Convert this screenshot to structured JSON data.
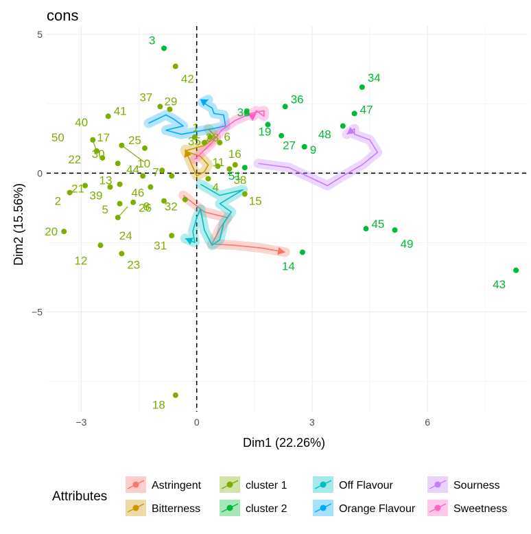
{
  "chart_data": {
    "type": "scatter",
    "title": "cons",
    "xlabel": "Dim1 (22.26%)",
    "ylabel": "Dim2 (15.56%)",
    "xlim": [
      -3.9,
      8.6
    ],
    "ylim": [
      -8.6,
      5.3
    ],
    "xticks": [
      -3,
      0,
      3,
      6
    ],
    "yticks": [
      -5,
      0,
      5
    ],
    "grid": true,
    "reference_lines": {
      "x": 0,
      "y": 0
    },
    "colors": {
      "cluster 1": "#7CAE00",
      "cluster 2": "#00BA38",
      "Astringent": "#F8766D",
      "Bitterness": "#CD9600",
      "Off Flavour": "#00BFC4",
      "Orange Flavour": "#00A9FF",
      "Sourness": "#C77CFF",
      "Sweetness": "#FF61C3"
    },
    "points": [
      {
        "label": "1",
        "x": 0.35,
        "y": 1.3,
        "cluster": "cluster 1"
      },
      {
        "label": "2",
        "x": -3.3,
        "y": -0.7,
        "cluster": "cluster 1"
      },
      {
        "label": "3",
        "x": -0.85,
        "y": 4.5,
        "cluster": "cluster 2"
      },
      {
        "label": "4",
        "x": 0.3,
        "y": -0.2,
        "cluster": "cluster 1"
      },
      {
        "label": "5",
        "x": -2.0,
        "y": -1.1,
        "cluster": "cluster 1"
      },
      {
        "label": "6",
        "x": 0.6,
        "y": 1.1,
        "cluster": "cluster 1"
      },
      {
        "label": "7",
        "x": -0.65,
        "y": -0.1,
        "cluster": "cluster 1"
      },
      {
        "label": "8",
        "x": -0.85,
        "y": -1.0,
        "cluster": "cluster 1"
      },
      {
        "label": "9",
        "x": 2.8,
        "y": 0.95,
        "cluster": "cluster 2"
      },
      {
        "label": "10",
        "x": -0.9,
        "y": 0.1,
        "cluster": "cluster 1"
      },
      {
        "label": "11",
        "x": 0.55,
        "y": 0.25,
        "cluster": "cluster 1"
      },
      {
        "label": "12",
        "x": -2.5,
        "y": -2.6,
        "cluster": "cluster 1"
      },
      {
        "label": "13",
        "x": -2.0,
        "y": -0.4,
        "cluster": "cluster 1"
      },
      {
        "label": "14",
        "x": 2.75,
        "y": -2.85,
        "cluster": "cluster 2"
      },
      {
        "label": "15",
        "x": 1.25,
        "y": -0.75,
        "cluster": "cluster 1"
      },
      {
        "label": "16",
        "x": 1.0,
        "y": 0.3,
        "cluster": "cluster 1"
      },
      {
        "label": "17",
        "x": -1.95,
        "y": 1.0,
        "cluster": "cluster 1"
      },
      {
        "label": "18",
        "x": -0.55,
        "y": -8.0,
        "cluster": "cluster 1"
      },
      {
        "label": "19",
        "x": 1.85,
        "y": 1.75,
        "cluster": "cluster 2"
      },
      {
        "label": "20",
        "x": -3.45,
        "y": -2.1,
        "cluster": "cluster 1"
      },
      {
        "label": "21",
        "x": -2.9,
        "y": -0.45,
        "cluster": "cluster 1"
      },
      {
        "label": "22",
        "x": -2.45,
        "y": 0.55,
        "cluster": "cluster 1"
      },
      {
        "label": "23",
        "x": -1.95,
        "y": -2.9,
        "cluster": "cluster 1"
      },
      {
        "label": "24",
        "x": -2.05,
        "y": -1.6,
        "cluster": "cluster 1"
      },
      {
        "label": "25",
        "x": -1.35,
        "y": 0.9,
        "cluster": "cluster 1"
      },
      {
        "label": "26",
        "x": -1.65,
        "y": -1.05,
        "cluster": "cluster 1"
      },
      {
        "label": "27",
        "x": 2.2,
        "y": 1.35,
        "cluster": "cluster 2"
      },
      {
        "label": "28",
        "x": 0.2,
        "y": 1.1,
        "cluster": "cluster 1"
      },
      {
        "label": "29",
        "x": -0.7,
        "y": 2.3,
        "cluster": "cluster 1"
      },
      {
        "label": "30",
        "x": -2.05,
        "y": 0.35,
        "cluster": "cluster 1"
      },
      {
        "label": "31",
        "x": -0.65,
        "y": -2.25,
        "cluster": "cluster 1"
      },
      {
        "label": "32",
        "x": -0.3,
        "y": -0.95,
        "cluster": "cluster 1"
      },
      {
        "label": "33",
        "x": 1.3,
        "y": 2.2,
        "cluster": "cluster 2"
      },
      {
        "label": "34",
        "x": 4.3,
        "y": 3.1,
        "cluster": "cluster 2"
      },
      {
        "label": "35",
        "x": -0.05,
        "y": 1.3,
        "cluster": "cluster 1"
      },
      {
        "label": "36",
        "x": 2.3,
        "y": 2.4,
        "cluster": "cluster 2"
      },
      {
        "label": "37",
        "x": -0.95,
        "y": 2.4,
        "cluster": "cluster 1"
      },
      {
        "label": "38",
        "x": 0.85,
        "y": 0.15,
        "cluster": "cluster 1"
      },
      {
        "label": "39",
        "x": -2.25,
        "y": -0.5,
        "cluster": "cluster 1"
      },
      {
        "label": "40",
        "x": -2.7,
        "y": 1.2,
        "cluster": "cluster 1"
      },
      {
        "label": "41",
        "x": -2.3,
        "y": 2.05,
        "cluster": "cluster 1"
      },
      {
        "label": "42",
        "x": -0.55,
        "y": 3.85,
        "cluster": "cluster 1"
      },
      {
        "label": "43",
        "x": 8.3,
        "y": -3.5,
        "cluster": "cluster 2"
      },
      {
        "label": "44",
        "x": -1.4,
        "y": -0.1,
        "cluster": "cluster 1"
      },
      {
        "label": "45",
        "x": 4.4,
        "y": -2.0,
        "cluster": "cluster 2"
      },
      {
        "label": "46",
        "x": -1.2,
        "y": -0.5,
        "cluster": "cluster 1"
      },
      {
        "label": "47",
        "x": 4.1,
        "y": 2.15,
        "cluster": "cluster 2"
      },
      {
        "label": "48",
        "x": 3.8,
        "y": 1.7,
        "cluster": "cluster 2"
      },
      {
        "label": "49",
        "x": 5.15,
        "y": -2.05,
        "cluster": "cluster 2"
      },
      {
        "label": "50",
        "x": -2.6,
        "y": 0.8,
        "cluster": "cluster 1"
      },
      {
        "label": "51",
        "x": 1.25,
        "y": 0.2,
        "cluster": "cluster 2"
      }
    ],
    "trajectories": [
      {
        "name": "Astringent",
        "points": [
          [
            -0.35,
            -0.8
          ],
          [
            0.2,
            -1.4
          ],
          [
            0.8,
            -1.6
          ],
          [
            0.6,
            -2.0
          ],
          [
            0.4,
            -2.55
          ],
          [
            1.0,
            -2.6
          ],
          [
            1.7,
            -2.7
          ],
          [
            2.3,
            -2.85
          ]
        ]
      },
      {
        "name": "Bitterness",
        "points": [
          [
            0.3,
            1.6
          ],
          [
            0.5,
            1.3
          ],
          [
            0.2,
            1.0
          ],
          [
            -0.3,
            0.8
          ],
          [
            0.1,
            0.6
          ],
          [
            0.3,
            0.3
          ],
          [
            0.2,
            0.05
          ],
          [
            0.0,
            -0.1
          ],
          [
            -0.3,
            0.85
          ]
        ]
      },
      {
        "name": "Off Flavour",
        "points": [
          [
            0.1,
            -0.4
          ],
          [
            0.6,
            -0.8
          ],
          [
            1.2,
            -0.6
          ],
          [
            0.6,
            -1.1
          ],
          [
            0.9,
            -1.4
          ],
          [
            0.7,
            -1.8
          ],
          [
            0.6,
            -2.4
          ],
          [
            0.4,
            -2.6
          ],
          [
            0.2,
            -2.05
          ],
          [
            0.1,
            -1.3
          ],
          [
            0.0,
            -1.6
          ],
          [
            -0.1,
            -2.1
          ],
          [
            -0.05,
            -2.5
          ],
          [
            -0.3,
            -2.35
          ]
        ]
      },
      {
        "name": "Orange Flavour",
        "points": [
          [
            -1.25,
            1.8
          ],
          [
            -0.8,
            2.1
          ],
          [
            -0.6,
            1.95
          ],
          [
            -0.35,
            1.7
          ],
          [
            -0.8,
            1.55
          ],
          [
            -0.4,
            1.4
          ],
          [
            0.4,
            1.6
          ],
          [
            0.75,
            1.7
          ],
          [
            0.7,
            2.1
          ],
          [
            0.45,
            2.15
          ],
          [
            0.4,
            2.35
          ],
          [
            0.15,
            2.55
          ],
          [
            0.3,
            2.65
          ]
        ]
      },
      {
        "name": "Sourness",
        "points": [
          [
            1.6,
            0.35
          ],
          [
            2.4,
            0.2
          ],
          [
            3.4,
            -0.45
          ],
          [
            3.8,
            -0.1
          ],
          [
            4.3,
            0.3
          ],
          [
            4.7,
            0.75
          ],
          [
            4.5,
            1.2
          ],
          [
            4.1,
            1.4
          ],
          [
            4.1,
            1.6
          ],
          [
            3.9,
            1.4
          ]
        ]
      },
      {
        "name": "Sweetness",
        "points": [
          [
            -0.05,
            0.5
          ],
          [
            0.4,
            1.1
          ],
          [
            0.65,
            1.55
          ],
          [
            1.0,
            1.9
          ],
          [
            1.4,
            2.15
          ],
          [
            1.75,
            2.25
          ],
          [
            1.75,
            2.05
          ],
          [
            1.55,
            2.25
          ],
          [
            1.45,
            2.05
          ],
          [
            1.55,
            2.15
          ]
        ]
      }
    ],
    "legend": {
      "position": "bottom",
      "title": "Attributes",
      "entries": [
        "Astringent",
        "Bitterness",
        "cluster 1",
        "cluster 2",
        "Off Flavour",
        "Orange Flavour",
        "Sourness",
        "Sweetness"
      ]
    }
  }
}
